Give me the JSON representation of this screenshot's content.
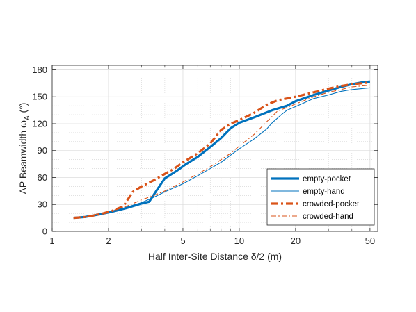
{
  "chart_data": {
    "type": "line",
    "xlabel": "Half Inter-Site Distance δ/2 (m)",
    "ylabel": "AP Beamwidth ω",
    "ylabel_sub": "A",
    "ylabel_unit": " (°)",
    "xscale": "log",
    "xlim": [
      1,
      55
    ],
    "ylim": [
      0,
      185
    ],
    "xticks": [
      1,
      2,
      5,
      10,
      20,
      50
    ],
    "xtick_labels": [
      "1",
      "2",
      "5",
      "10",
      "20",
      "50"
    ],
    "yticks": [
      0,
      30,
      60,
      90,
      120,
      150,
      180
    ],
    "ytick_labels": [
      "0",
      "30",
      "60",
      "90",
      "120",
      "150",
      "180"
    ],
    "grid": true,
    "minor_grid": true,
    "legend_position": "bottom-right",
    "series": [
      {
        "name": "empty-pocket",
        "color": "#0072BD",
        "style": "solid",
        "weight": "thick",
        "x": [
          1.3,
          1.5,
          1.8,
          2.1,
          2.5,
          3.0,
          3.3,
          3.6,
          4.0,
          4.6,
          5.2,
          6.0,
          7.0,
          8.0,
          9.0,
          10.0,
          12.0,
          15.0,
          18.0,
          20.0,
          25.0,
          30.0,
          35.0,
          40.0,
          45.0,
          50.0
        ],
        "y": [
          15,
          16,
          19,
          22,
          26,
          31,
          33,
          45,
          59,
          67,
          75,
          83,
          94,
          104,
          115,
          121,
          127,
          135,
          140,
          145,
          152,
          157,
          161,
          164,
          166,
          167
        ]
      },
      {
        "name": "empty-hand",
        "color": "#0072BD",
        "style": "solid",
        "weight": "thin",
        "x": [
          1.3,
          1.5,
          1.8,
          2.1,
          2.5,
          3.0,
          3.5,
          4.0,
          5.0,
          6.0,
          7.0,
          8.0,
          9.0,
          10.0,
          12.0,
          14.0,
          15.0,
          17.0,
          18.0,
          20.0,
          25.0,
          30.0,
          35.0,
          40.0,
          45.0,
          50.0
        ],
        "y": [
          15,
          16,
          19,
          22,
          27,
          32,
          38,
          44,
          53,
          62,
          70,
          77,
          85,
          92,
          103,
          114,
          121,
          131,
          135,
          139,
          148,
          152,
          156,
          158,
          159,
          160
        ]
      },
      {
        "name": "crowded-pocket",
        "color": "#D95319",
        "style": "dashdot",
        "weight": "thick",
        "x": [
          1.3,
          1.5,
          1.8,
          2.1,
          2.4,
          2.7,
          3.0,
          3.5,
          4.0,
          4.5,
          5.0,
          6.0,
          7.0,
          8.0,
          9.0,
          10.0,
          12.0,
          14.0,
          16.0,
          20.0,
          25.0,
          30.0,
          35.0,
          40.0,
          45.0,
          50.0
        ],
        "y": [
          15,
          16,
          19,
          23,
          28,
          44,
          50,
          57,
          64,
          70,
          77,
          87,
          98,
          113,
          120,
          124,
          132,
          141,
          146,
          150,
          155,
          159,
          162,
          164,
          165,
          166
        ]
      },
      {
        "name": "crowded-hand",
        "color": "#D95319",
        "style": "dashdot",
        "weight": "thin",
        "x": [
          1.3,
          1.5,
          1.8,
          2.1,
          2.5,
          3.0,
          3.5,
          4.0,
          5.0,
          6.0,
          7.0,
          8.0,
          9.0,
          10.0,
          12.0,
          14.0,
          16.0,
          18.0,
          20.0,
          25.0,
          30.0,
          35.0,
          40.0,
          45.0,
          50.0
        ],
        "y": [
          15,
          16,
          20,
          23,
          28,
          35,
          40,
          45,
          55,
          64,
          72,
          80,
          87,
          95,
          108,
          122,
          134,
          138,
          142,
          150,
          155,
          158,
          161,
          162,
          163
        ]
      }
    ]
  }
}
